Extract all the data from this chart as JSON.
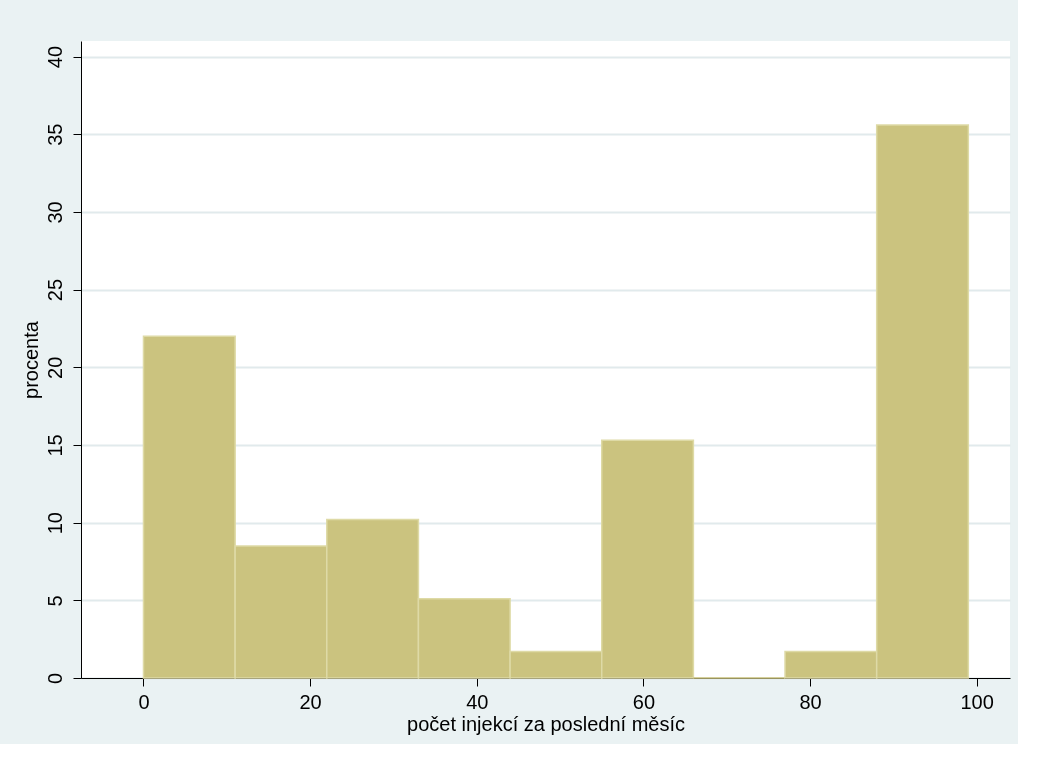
{
  "chart_data": {
    "type": "histogram",
    "xlabel": "počet injekcí za poslední měsíc",
    "ylabel": "procenta",
    "bins": [
      0,
      11,
      22,
      33,
      44,
      55,
      66,
      77,
      88,
      99
    ],
    "values": [
      22.0,
      8.5,
      10.2,
      5.1,
      1.7,
      15.3,
      0,
      1.7,
      35.6
    ],
    "color": "#cbc37f",
    "xlim": [
      -7.5,
      104
    ],
    "xticks": [
      0,
      20,
      40,
      60,
      80,
      100
    ],
    "ylim": [
      0,
      41
    ],
    "yticks": [
      0,
      5,
      10,
      15,
      20,
      25,
      30,
      35,
      40
    ],
    "grid": "y"
  }
}
